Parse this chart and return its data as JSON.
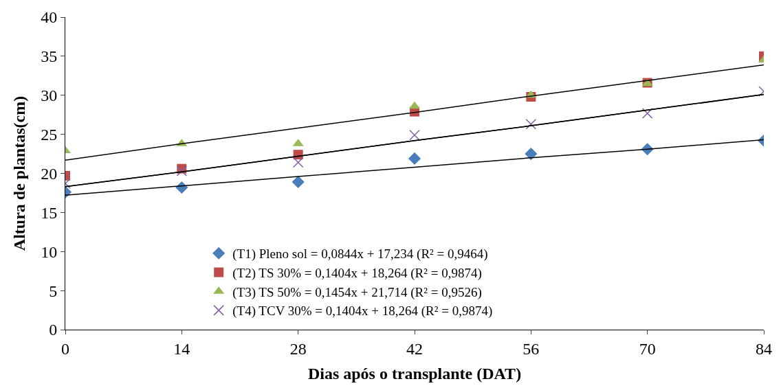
{
  "chart_data": {
    "type": "scatter",
    "xlabel": "Dias após o transplante (DAT)",
    "ylabel": "Altura de plantas(cm)",
    "x": [
      0,
      14,
      28,
      42,
      56,
      70,
      84
    ],
    "series": [
      {
        "name": "(T1) Pleno sol = 0,0844x + 17,234 (R² = 0,9464)",
        "color": "#4a7ebb",
        "marker": "diamond",
        "values": [
          17.6,
          18.2,
          18.9,
          21.9,
          22.5,
          23.1,
          24.2
        ]
      },
      {
        "name": "(T2) TS 30% = 0,1404x + 18,264 (R² = 0,9874)",
        "color": "#be4b48",
        "marker": "square",
        "values": [
          19.7,
          20.6,
          22.4,
          27.9,
          29.8,
          31.6,
          35.0
        ]
      },
      {
        "name": "(T3) TS 50% = 0,1454x + 21,714 (R² = 0,9526)",
        "color": "#98b954",
        "marker": "triangle",
        "values": [
          22.9,
          23.8,
          23.8,
          28.6,
          30.0,
          31.5,
          34.5
        ]
      },
      {
        "name": "(T4) TCV 30% = 0,1404x + 18,264 (R² = 0,9874)",
        "color": "#7d60a0",
        "marker": "cross",
        "values": [
          18.7,
          20.3,
          21.4,
          24.9,
          26.3,
          27.7,
          30.5
        ]
      },
      {
        "type": "line",
        "color": "#000000",
        "values": [
          17.2,
          18.4,
          19.6,
          20.8,
          22.0,
          23.1,
          24.3
        ]
      },
      {
        "type": "line",
        "color": "#000000",
        "values": [
          18.3,
          20.2,
          22.2,
          24.2,
          26.1,
          28.1,
          30.1
        ]
      },
      {
        "type": "line",
        "color": "#000000",
        "values": [
          21.7,
          23.8,
          25.8,
          27.8,
          29.9,
          31.9,
          33.9
        ]
      },
      {
        "type": "line",
        "color": "#000000",
        "values": [
          18.3,
          20.2,
          22.2,
          24.2,
          26.1,
          28.1,
          30.1
        ]
      }
    ],
    "xlim": [
      0,
      84
    ],
    "xticks": [
      0,
      14,
      28,
      42,
      56,
      70,
      84
    ],
    "ylim": [
      0,
      40
    ],
    "yticks": [
      0,
      5,
      10,
      15,
      20,
      25,
      30,
      35,
      40
    ],
    "legend": "bottom"
  }
}
